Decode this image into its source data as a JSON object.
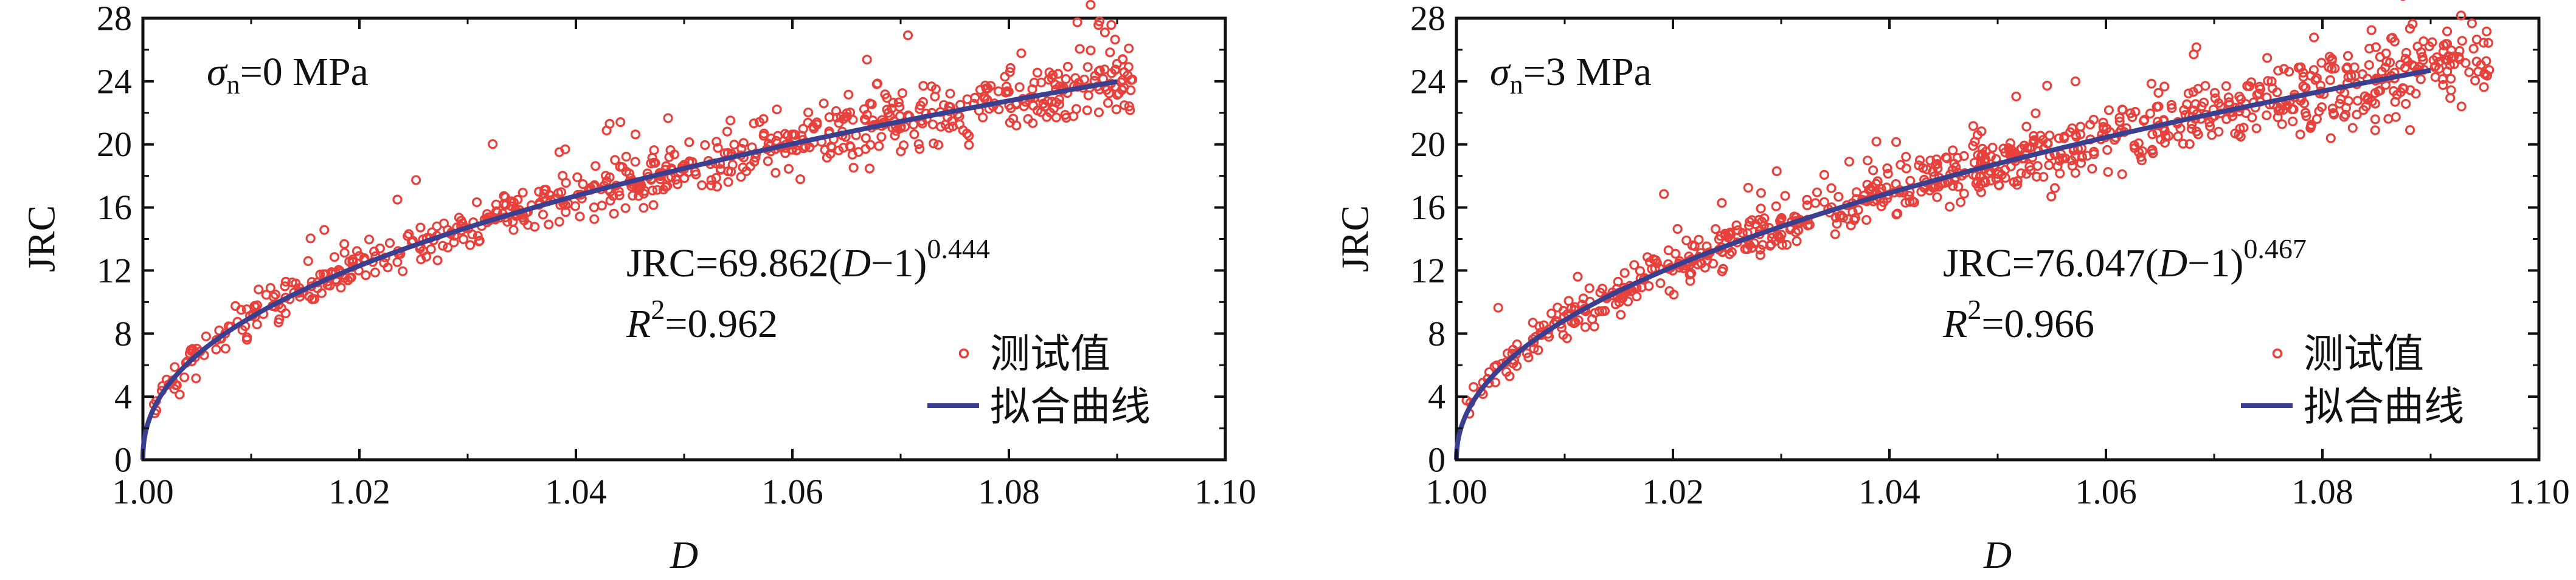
{
  "chart_data": [
    {
      "type": "scatter",
      "panel": "left",
      "annotation": {
        "sigma_symbol": "σ",
        "sigma_sub": "n",
        "sigma_value": "=0 MPa"
      },
      "xlabel": "D",
      "ylabel": "JRC",
      "xlim": [
        1.0,
        1.1
      ],
      "ylim": [
        0,
        28
      ],
      "xticks": [
        "1.00",
        "1.02",
        "1.04",
        "1.06",
        "1.08",
        "1.10"
      ],
      "yticks": [
        "0",
        "4",
        "8",
        "12",
        "16",
        "20",
        "24",
        "28"
      ],
      "grid": false,
      "legend_position": "bottom-right",
      "fit": {
        "a": 69.862,
        "b": 0.444,
        "x_range": [
          1.0,
          1.09
        ]
      },
      "equation": {
        "prefix": "JRC=69.862(",
        "var": "D",
        "mid": "−1)",
        "exp": "0.444"
      },
      "r2": {
        "var": "R",
        "exp": "2",
        "value": "=0.962"
      },
      "scatter_x_range": [
        1.0008,
        1.0915
      ],
      "noise_sd": 1.0,
      "n_points": 700,
      "series": [
        {
          "name": "测试值",
          "kind": "scatter",
          "color": "#e8413c"
        },
        {
          "name": "拟合曲线",
          "kind": "line",
          "color": "#3a3f8f"
        }
      ]
    },
    {
      "type": "scatter",
      "panel": "right",
      "annotation": {
        "sigma_symbol": "σ",
        "sigma_sub": "n",
        "sigma_value": "=3 MPa"
      },
      "xlabel": "D",
      "ylabel": "JRC",
      "xlim": [
        1.0,
        1.1
      ],
      "ylim": [
        0,
        28
      ],
      "xticks": [
        "1.00",
        "1.02",
        "1.04",
        "1.06",
        "1.08",
        "1.10"
      ],
      "yticks": [
        "0",
        "4",
        "8",
        "12",
        "16",
        "20",
        "24",
        "28"
      ],
      "grid": false,
      "legend_position": "bottom-right",
      "fit": {
        "a": 76.047,
        "b": 0.467,
        "x_range": [
          1.0,
          1.09
        ]
      },
      "equation": {
        "prefix": "JRC=76.047(",
        "var": "D",
        "mid": "−1)",
        "exp": "0.467"
      },
      "r2": {
        "var": "R",
        "exp": "2",
        "value": "=0.966"
      },
      "scatter_x_range": [
        1.0008,
        1.0955
      ],
      "noise_sd": 1.1,
      "n_points": 850,
      "series": [
        {
          "name": "测试值",
          "kind": "scatter",
          "color": "#e8413c"
        },
        {
          "name": "拟合曲线",
          "kind": "line",
          "color": "#3a3f8f"
        }
      ]
    }
  ]
}
